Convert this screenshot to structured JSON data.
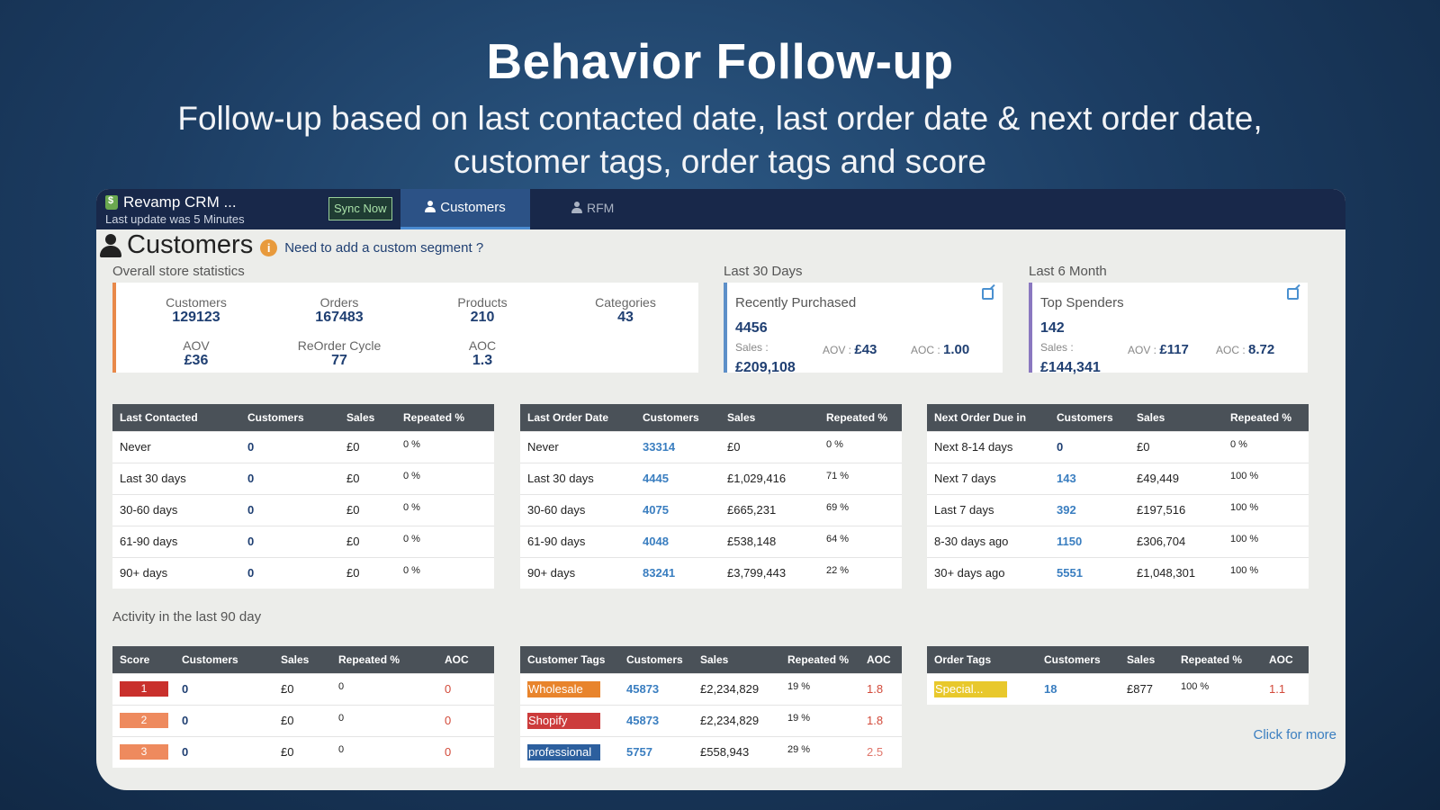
{
  "hero": {
    "title": "Behavior Follow-up",
    "subtitle": "Follow-up based on last contacted date, last order date & next order date, customer tags, order tags and score"
  },
  "topbar": {
    "brand": "Revamp CRM ...",
    "last_update": "Last update was 5 Minutes",
    "sync_label": "Sync Now",
    "tab_customers": "Customers",
    "tab_rfm": "RFM"
  },
  "page": {
    "title": "Customers",
    "info_glyph": "i",
    "custom_segment_link": "Need to add a custom segment ?"
  },
  "overall": {
    "label": "Overall store statistics",
    "customers_label": "Customers",
    "customers": "129123",
    "orders_label": "Orders",
    "orders": "167483",
    "products_label": "Products",
    "products": "210",
    "categories_label": "Categories",
    "categories": "43",
    "aov_label": "AOV",
    "aov": "£36",
    "reorder_label": "ReOrder Cycle",
    "reorder": "77",
    "aoc_label": "AOC",
    "aoc": "1.3"
  },
  "last30": {
    "label": "Last 30 Days",
    "title": "Recently Purchased",
    "count": "4456",
    "sales_label": "Sales :",
    "sales": "£209,108",
    "aov_label": "AOV :",
    "aov": "£43",
    "aoc_label": "AOC :",
    "aoc": "1.00"
  },
  "last6": {
    "label": "Last 6 Month",
    "title": "Top Spenders",
    "count": "142",
    "sales_label": "Sales :",
    "sales": "£144,341",
    "aov_label": "AOV :",
    "aov": "£117",
    "aoc_label": "AOC :",
    "aoc": "8.72"
  },
  "last_contacted": {
    "headers": [
      "Last Contacted",
      "Customers",
      "Sales",
      "Repeated %"
    ],
    "rows": [
      [
        "Never",
        "0",
        "£0",
        "0 %"
      ],
      [
        "Last 30 days",
        "0",
        "£0",
        "0 %"
      ],
      [
        "30-60 days",
        "0",
        "£0",
        "0 %"
      ],
      [
        "61-90 days",
        "0",
        "£0",
        "0 %"
      ],
      [
        "90+ days",
        "0",
        "£0",
        "0 %"
      ]
    ]
  },
  "last_order": {
    "headers": [
      "Last Order Date",
      "Customers",
      "Sales",
      "Repeated %"
    ],
    "rows": [
      [
        "Never",
        "33314",
        "£0",
        "0 %"
      ],
      [
        "Last 30 days",
        "4445",
        "£1,029,416",
        "71 %"
      ],
      [
        "30-60 days",
        "4075",
        "£665,231",
        "69 %"
      ],
      [
        "61-90 days",
        "4048",
        "£538,148",
        "64 %"
      ],
      [
        "90+ days",
        "83241",
        "£3,799,443",
        "22 %"
      ]
    ]
  },
  "next_order": {
    "headers": [
      "Next Order Due in",
      "Customers",
      "Sales",
      "Repeated %"
    ],
    "rows": [
      [
        "Next 8-14 days",
        "0",
        "£0",
        "0 %"
      ],
      [
        "Next 7 days",
        "143",
        "£49,449",
        "100 %"
      ],
      [
        "Last 7 days",
        "392",
        "£197,516",
        "100 %"
      ],
      [
        "8-30 days ago",
        "1150",
        "£306,704",
        "100 %"
      ],
      [
        "30+ days ago",
        "5551",
        "£1,048,301",
        "100 %"
      ]
    ]
  },
  "activity_label": "Activity in the last 90 day",
  "score_table": {
    "headers": [
      "Score",
      "Customers",
      "Sales",
      "Repeated %",
      "AOC"
    ],
    "rows": [
      {
        "score": "1",
        "color": "#c9302c",
        "customers": "0",
        "sales": "£0",
        "repeated": "0",
        "aoc": "0"
      },
      {
        "score": "2",
        "color": "#ee8a5e",
        "customers": "0",
        "sales": "£0",
        "repeated": "0",
        "aoc": "0"
      },
      {
        "score": "3",
        "color": "#ee8a5e",
        "customers": "0",
        "sales": "£0",
        "repeated": "0",
        "aoc": "0"
      }
    ]
  },
  "customer_tags": {
    "headers": [
      "Customer Tags",
      "Customers",
      "Sales",
      "Repeated %",
      "AOC"
    ],
    "rows": [
      {
        "tag": "Wholesale",
        "color": "#e8842c",
        "customers": "45873",
        "sales": "£2,234,829",
        "repeated": "19 %",
        "aoc": "1.8"
      },
      {
        "tag": "Shopify",
        "color": "#cc3b3b",
        "customers": "45873",
        "sales": "£2,234,829",
        "repeated": "19 %",
        "aoc": "1.8"
      },
      {
        "tag": "professional",
        "color": "#2c5f9e",
        "customers": "5757",
        "sales": "£558,943",
        "repeated": "29 %",
        "aoc": "2.5"
      }
    ]
  },
  "order_tags": {
    "headers": [
      "Order Tags",
      "Customers",
      "Sales",
      "Repeated %",
      "AOC"
    ],
    "rows": [
      {
        "tag": "Special...",
        "color": "#e8c82c",
        "customers": "18",
        "sales": "£877",
        "repeated": "100 %",
        "aoc": "1.1"
      }
    ]
  },
  "click_more": "Click for more"
}
